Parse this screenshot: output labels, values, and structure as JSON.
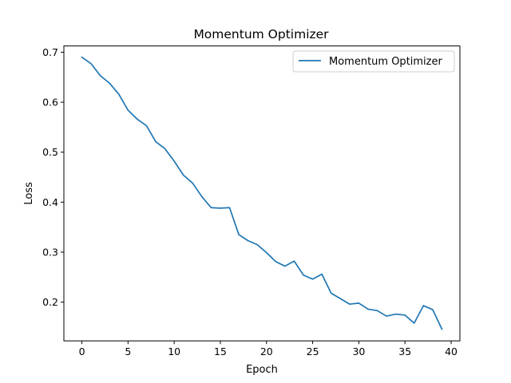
{
  "chart_data": {
    "type": "line",
    "title": "Momentum Optimizer",
    "xlabel": "Epoch",
    "ylabel": "Loss",
    "xlim": [
      -1.95,
      40.95
    ],
    "ylim": [
      0.1225,
      0.7125
    ],
    "xticks": [
      0,
      5,
      10,
      15,
      20,
      25,
      30,
      35,
      40
    ],
    "yticks": [
      0.2,
      0.3,
      0.4,
      0.5,
      0.6,
      0.7
    ],
    "grid": false,
    "legend": {
      "placement": "top-right"
    },
    "series": [
      {
        "name": "Momentum Optimizer",
        "color": "#1f77b4",
        "x": [
          0,
          1,
          2,
          3,
          4,
          5,
          6,
          7,
          8,
          9,
          10,
          11,
          12,
          13,
          14,
          15,
          16,
          17,
          18,
          19,
          20,
          21,
          22,
          23,
          24,
          25,
          26,
          27,
          28,
          29,
          30,
          31,
          32,
          33,
          34,
          35,
          36,
          37,
          38,
          39
        ],
        "y": [
          0.69,
          0.677,
          0.653,
          0.638,
          0.616,
          0.584,
          0.566,
          0.553,
          0.521,
          0.507,
          0.482,
          0.454,
          0.438,
          0.411,
          0.389,
          0.388,
          0.389,
          0.335,
          0.323,
          0.315,
          0.299,
          0.281,
          0.272,
          0.282,
          0.254,
          0.246,
          0.256,
          0.218,
          0.207,
          0.196,
          0.198,
          0.186,
          0.183,
          0.172,
          0.176,
          0.174,
          0.158,
          0.193,
          0.185,
          0.146
        ]
      }
    ]
  }
}
